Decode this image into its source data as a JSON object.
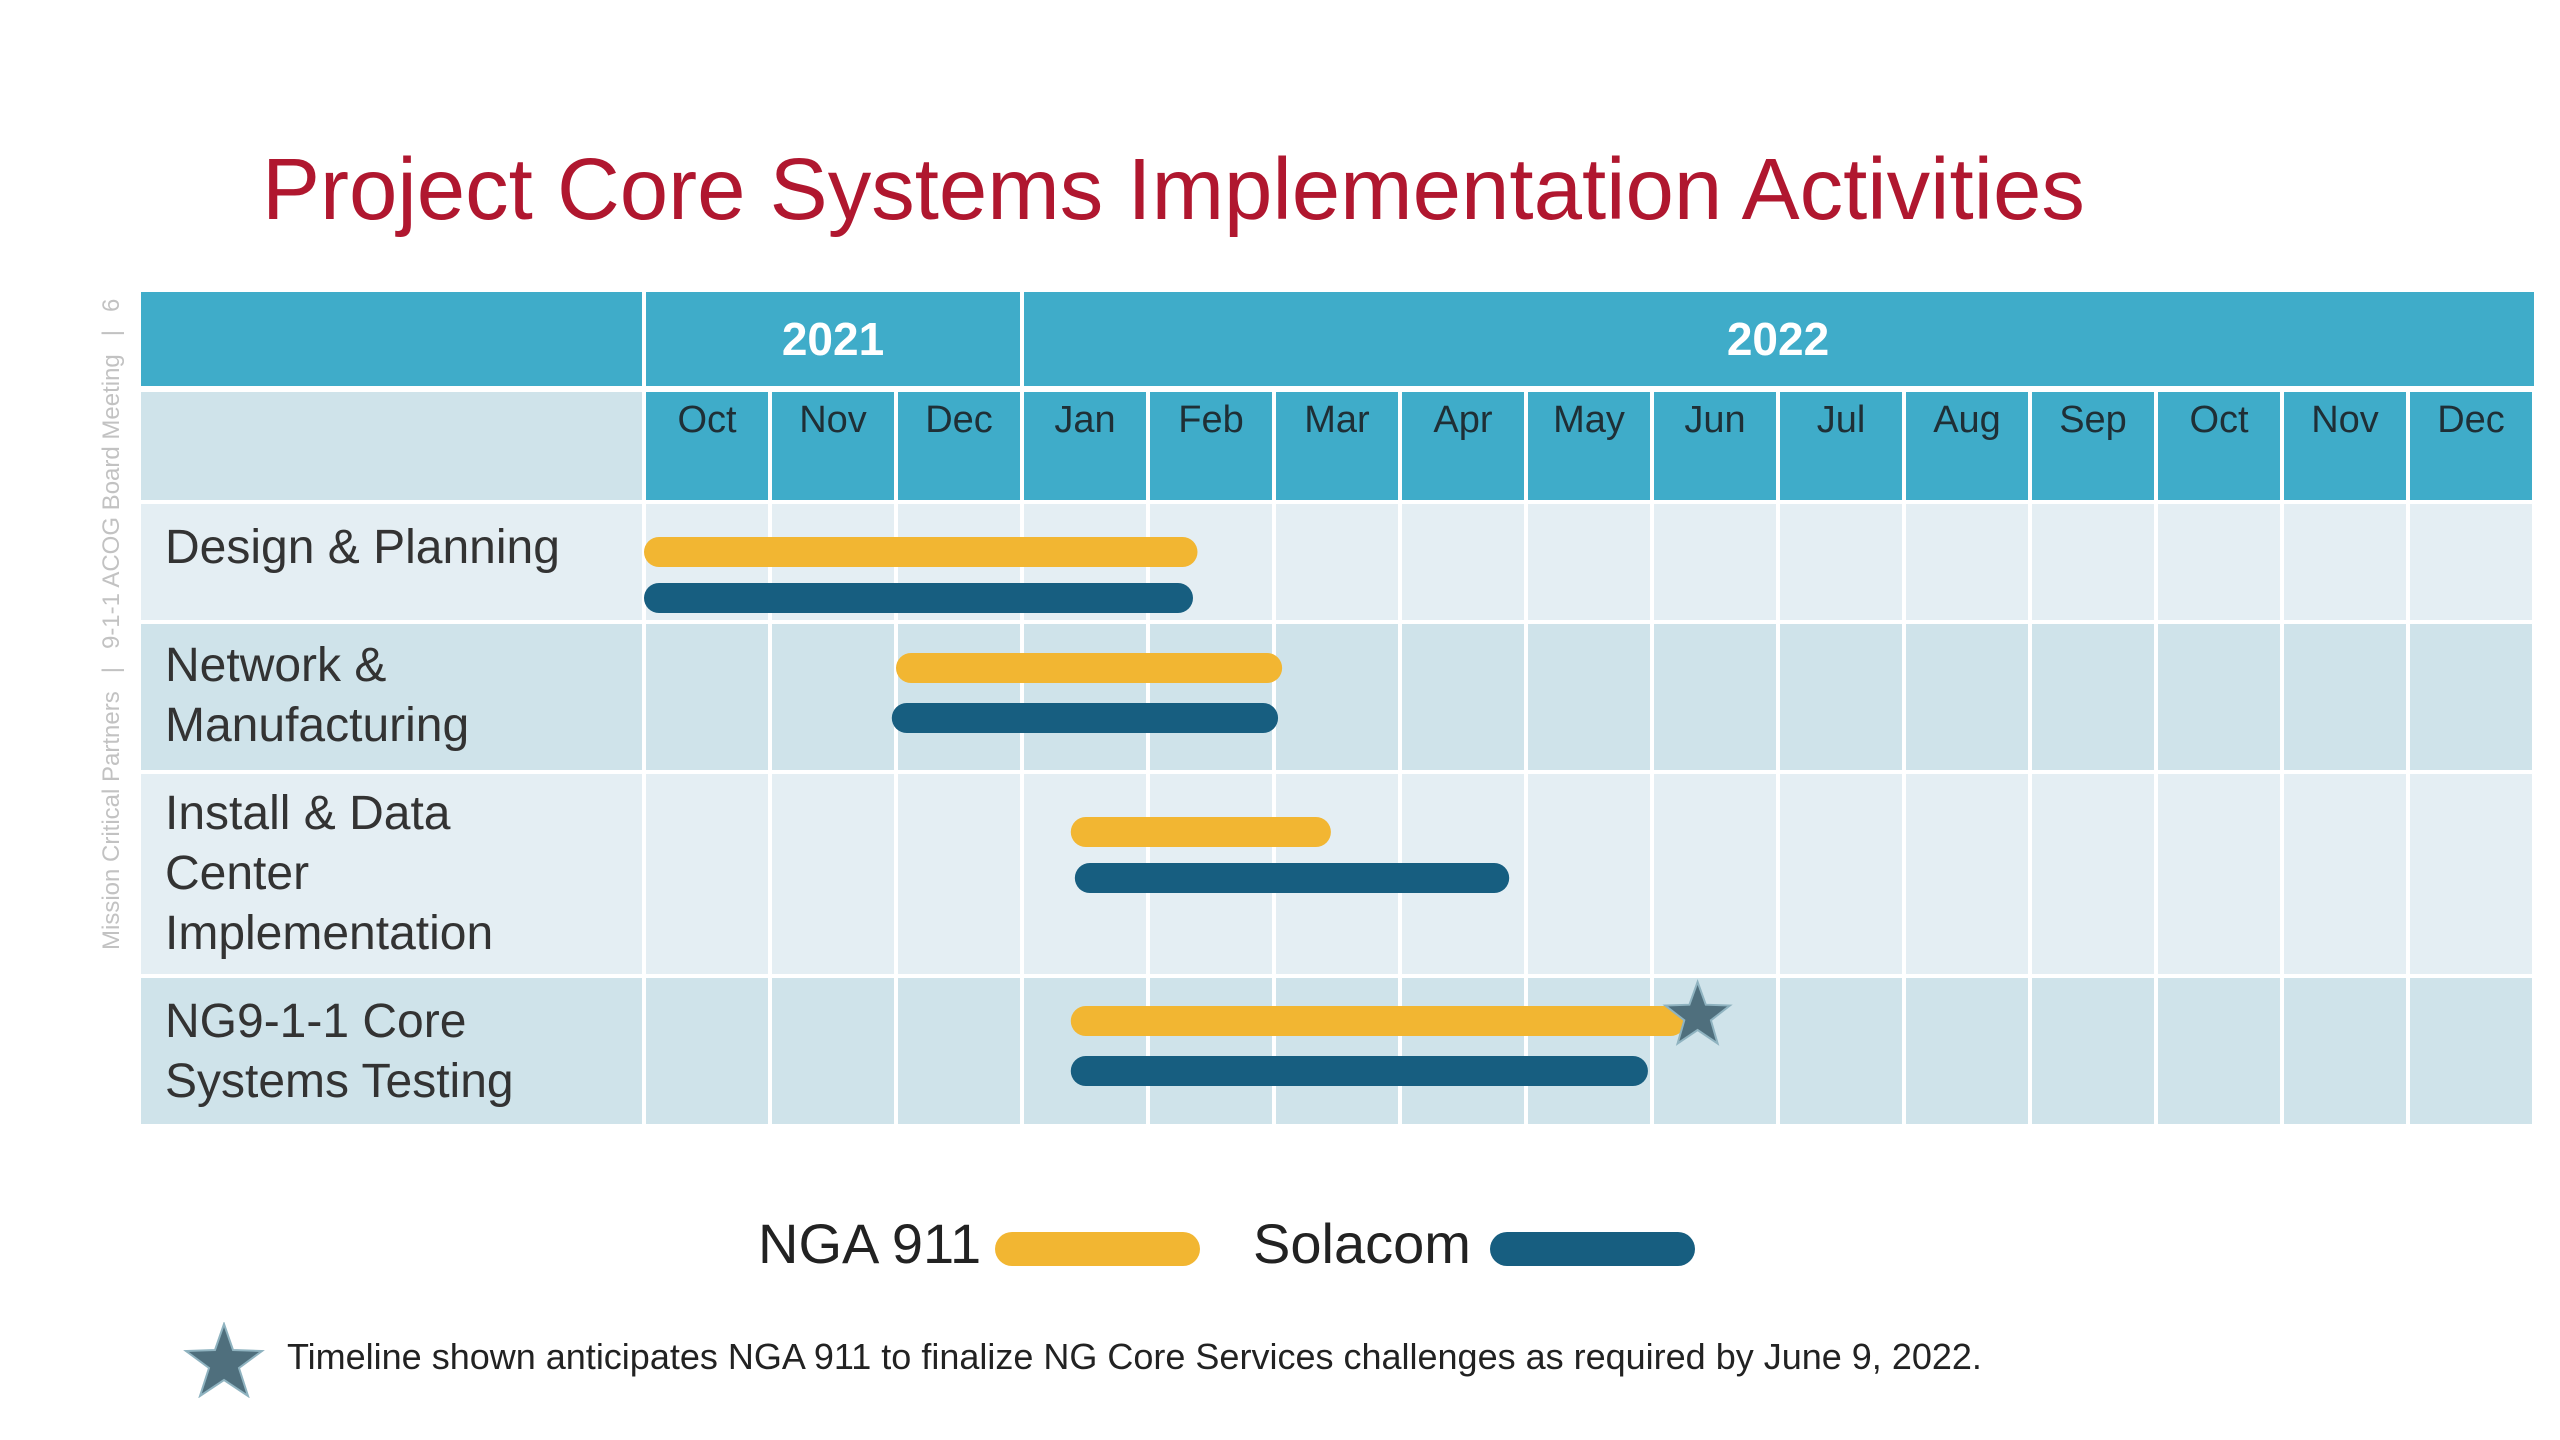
{
  "sidebar": {
    "org": "Mission Critical Partners",
    "meeting": "9-1-1 ACOG Board Meeting",
    "page": "6"
  },
  "title": "Project Core Systems Implementation Activities",
  "colors": {
    "nga": "#f2b632",
    "solacom": "#175e80",
    "header": "#3facc9",
    "row_light": "#e4eef3",
    "row_dark": "#cfe3ea",
    "title": "#b0172f",
    "star": "#4f6f7d"
  },
  "chart_data": {
    "type": "gantt",
    "title": "Project Core Systems Implementation Activities",
    "year_groups": [
      {
        "label": "2021",
        "months": [
          "Oct",
          "Nov",
          "Dec"
        ]
      },
      {
        "label": "2022",
        "months": [
          "Jan",
          "Feb",
          "Mar",
          "Apr",
          "May",
          "Jun",
          "Jul",
          "Aug",
          "Sep",
          "Oct",
          "Nov",
          "Dec"
        ]
      }
    ],
    "months": [
      "Oct",
      "Nov",
      "Dec",
      "Jan",
      "Feb",
      "Mar",
      "Apr",
      "May",
      "Jun",
      "Jul",
      "Aug",
      "Sep",
      "Oct",
      "Nov",
      "Dec"
    ],
    "series": [
      {
        "name": "NGA 911",
        "color": "#f2b632"
      },
      {
        "name": "Solacom",
        "color": "#175e80"
      }
    ],
    "tasks": [
      {
        "label": "Design & Planning",
        "bars": [
          {
            "series": "NGA 911",
            "start": "2021-10-01",
            "end": "2022-02-12"
          },
          {
            "series": "Solacom",
            "start": "2021-10-01",
            "end": "2022-02-11"
          }
        ]
      },
      {
        "label": "Network & Manufacturing",
        "bars": [
          {
            "series": "NGA 911",
            "start": "2021-12-01",
            "end": "2022-03-03"
          },
          {
            "series": "Solacom",
            "start": "2021-11-30",
            "end": "2022-03-02"
          }
        ]
      },
      {
        "label": "Install & Data Center Implementation",
        "bars": [
          {
            "series": "NGA 911",
            "start": "2022-01-13",
            "end": "2022-03-15"
          },
          {
            "series": "Solacom",
            "start": "2022-01-14",
            "end": "2022-04-27"
          }
        ]
      },
      {
        "label": "NG9-1-1 Core Systems Testing",
        "bars": [
          {
            "series": "NGA 911",
            "start": "2022-01-13",
            "end": "2022-06-09"
          },
          {
            "series": "Solacom",
            "start": "2022-01-13",
            "end": "2022-05-31"
          }
        ]
      }
    ],
    "milestone": {
      "series": "NGA 911",
      "date": "2022-06-09",
      "marker": "star-icon"
    }
  },
  "legend": [
    {
      "label": "NGA 911",
      "color": "#f2b632"
    },
    {
      "label": "Solacom",
      "color": "#175e80"
    }
  ],
  "footnote": "Timeline shown anticipates NGA 911 to finalize NG Core Services challenges as required by June 9, 2022."
}
